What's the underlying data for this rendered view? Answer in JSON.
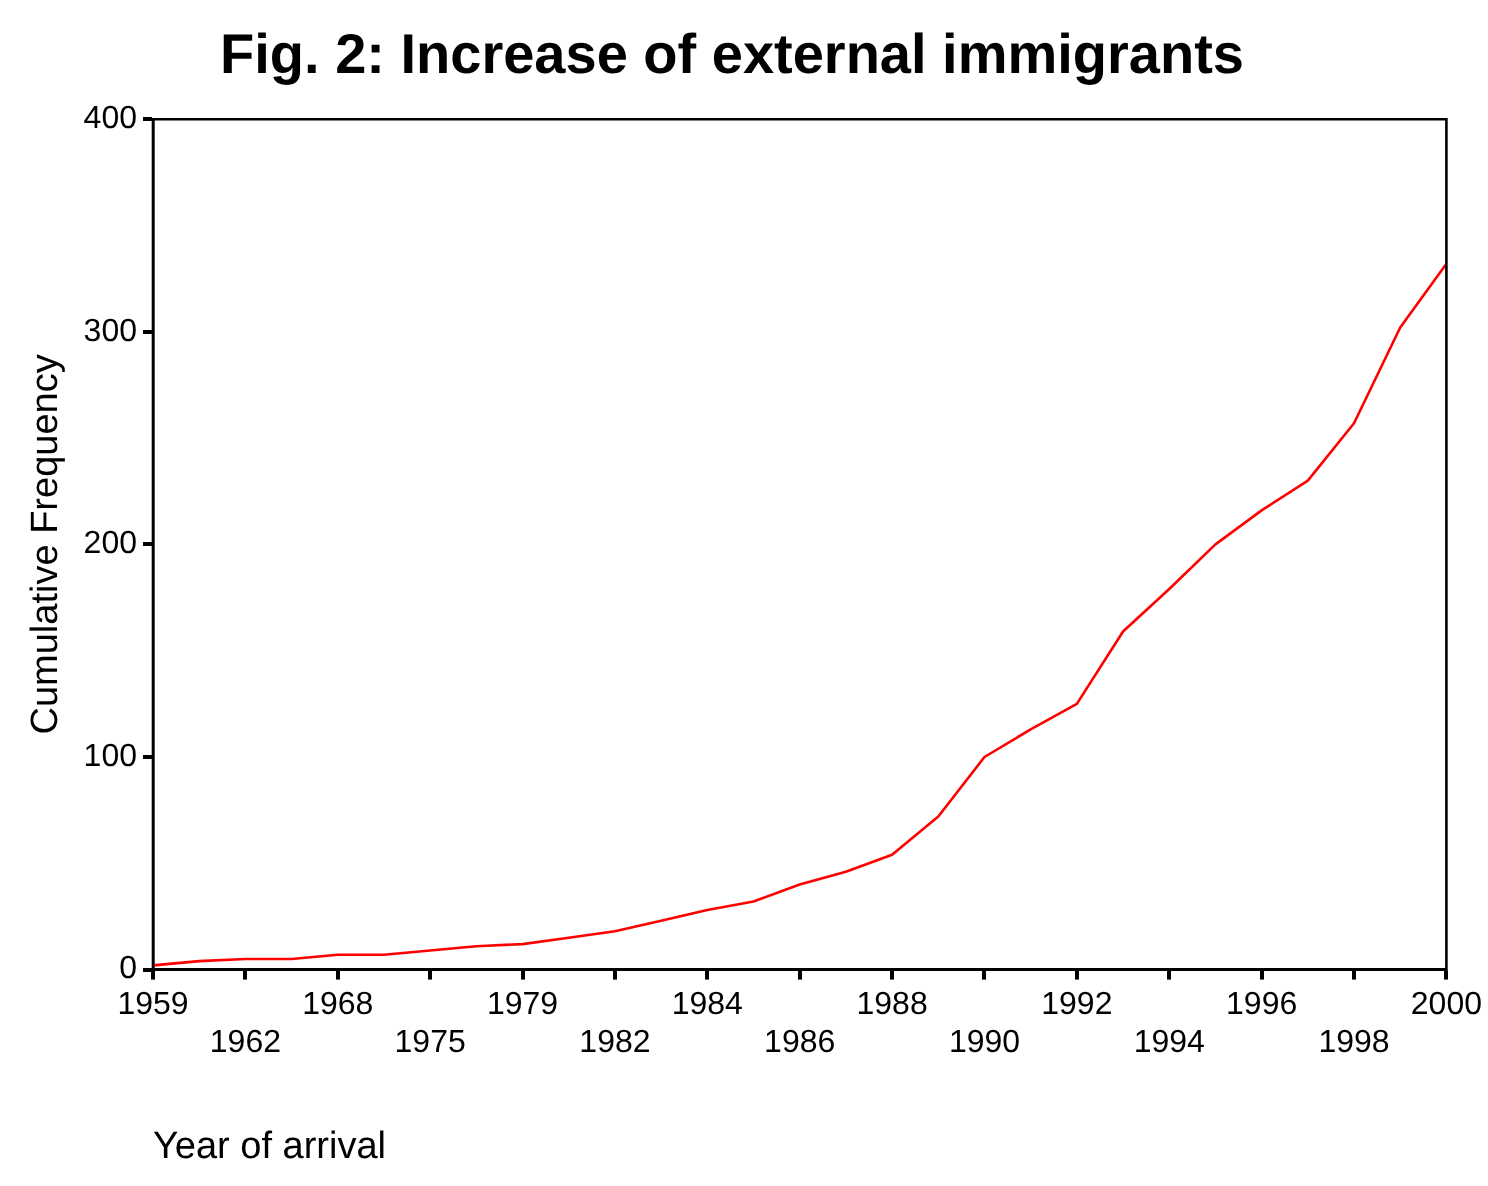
{
  "chart_data": {
    "type": "line",
    "title": "Fig. 2: Increase of external immigrants",
    "xlabel": "Year of arrival",
    "ylabel": "Cumulative Frequency",
    "categories": [
      "1959",
      null,
      "1962",
      null,
      "1968",
      null,
      "1975",
      null,
      "1979",
      null,
      "1982",
      null,
      "1984",
      null,
      "1986",
      null,
      "1988",
      null,
      "1990",
      null,
      "1992",
      null,
      "1994",
      null,
      "1996",
      null,
      "1998",
      null,
      "2000"
    ],
    "series": [
      {
        "color": "#ff0000",
        "values": [
          2,
          4,
          5,
          5,
          7,
          7,
          9,
          11,
          12,
          15,
          18,
          23,
          28,
          32,
          40,
          46,
          54,
          72,
          100,
          113,
          125,
          159,
          179,
          200,
          216,
          230,
          257,
          302,
          332
        ]
      }
    ],
    "ylim": [
      0,
      400
    ],
    "yticks": [
      0,
      100,
      200,
      300,
      400
    ],
    "grid": false,
    "legend": false,
    "marker": "none",
    "line_style": "solid"
  }
}
